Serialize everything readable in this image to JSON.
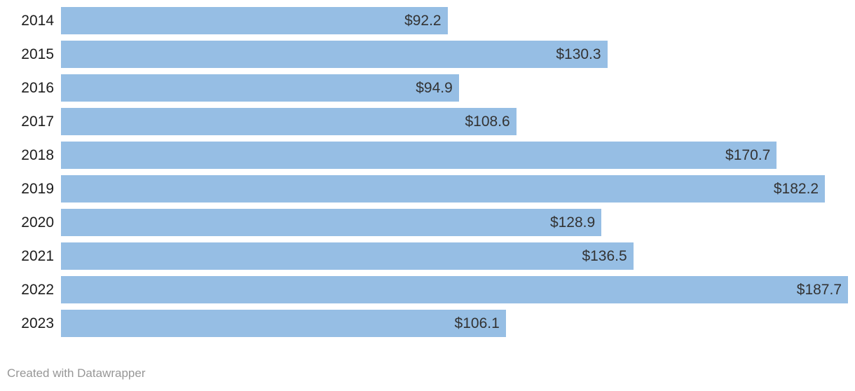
{
  "chart_data": {
    "type": "bar",
    "orientation": "horizontal",
    "title": "",
    "xlabel": "",
    "ylabel": "",
    "grid": false,
    "legend": false,
    "xlim": [
      0,
      187.7
    ],
    "categories": [
      "2014",
      "2015",
      "2016",
      "2017",
      "2018",
      "2019",
      "2020",
      "2021",
      "2022",
      "2023"
    ],
    "values": [
      92.2,
      130.3,
      94.9,
      108.6,
      170.7,
      182.2,
      128.9,
      136.5,
      187.7,
      106.1
    ],
    "value_labels": [
      "$92.2",
      "$130.3",
      "$94.9",
      "$108.6",
      "$170.7",
      "$182.2",
      "$128.9",
      "$136.5",
      "$187.7",
      "$106.1"
    ],
    "bar_color": "#96bee4",
    "value_label_color": "#333333",
    "category_label_color": "#1d1d1d"
  },
  "footer": {
    "attribution": "Created with Datawrapper",
    "color": "#979797"
  }
}
